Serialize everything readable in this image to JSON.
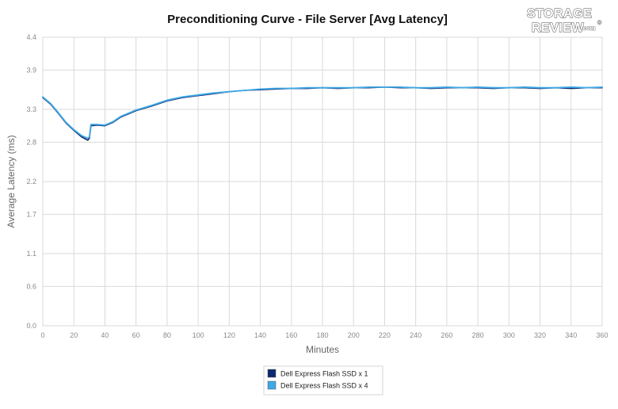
{
  "chart_data": {
    "type": "line",
    "title": "Preconditioning Curve - File Server [Avg Latency]",
    "xlabel": "Minutes",
    "ylabel": "Average Latency (ms)",
    "xlim": [
      0,
      360
    ],
    "ylim": [
      0.0,
      4.4
    ],
    "x_ticks": [
      0,
      20,
      40,
      60,
      80,
      100,
      120,
      140,
      160,
      180,
      200,
      220,
      240,
      260,
      280,
      300,
      320,
      340,
      360
    ],
    "y_ticks": [
      0.0,
      0.6,
      1.1,
      1.7,
      2.2,
      2.8,
      3.3,
      3.9,
      4.4
    ],
    "grid": true,
    "legend_position": "bottom-center",
    "series": [
      {
        "name": "Dell Express Flash SSD x 1",
        "color": "#0d2a6e",
        "x": [
          0,
          5,
          10,
          15,
          20,
          25,
          29,
          30,
          31,
          35,
          40,
          45,
          50,
          55,
          60,
          70,
          80,
          90,
          100,
          110,
          120,
          130,
          140,
          150,
          160,
          170,
          180,
          190,
          200,
          210,
          220,
          230,
          240,
          250,
          260,
          270,
          280,
          290,
          300,
          310,
          320,
          330,
          340,
          350,
          360
        ],
        "y": [
          3.48,
          3.38,
          3.24,
          3.09,
          2.98,
          2.88,
          2.83,
          2.86,
          3.05,
          3.06,
          3.05,
          3.1,
          3.18,
          3.23,
          3.28,
          3.35,
          3.43,
          3.48,
          3.51,
          3.54,
          3.57,
          3.59,
          3.6,
          3.61,
          3.62,
          3.62,
          3.63,
          3.62,
          3.63,
          3.63,
          3.64,
          3.63,
          3.63,
          3.62,
          3.63,
          3.63,
          3.63,
          3.62,
          3.63,
          3.63,
          3.62,
          3.63,
          3.62,
          3.63,
          3.63
        ]
      },
      {
        "name": "Dell Express Flash SSD x 4",
        "color": "#3fa9e6",
        "x": [
          0,
          5,
          10,
          15,
          20,
          25,
          29,
          30,
          31,
          35,
          40,
          45,
          50,
          55,
          60,
          70,
          80,
          90,
          100,
          110,
          120,
          130,
          140,
          150,
          160,
          170,
          180,
          190,
          200,
          210,
          220,
          230,
          240,
          250,
          260,
          270,
          280,
          290,
          300,
          310,
          320,
          330,
          340,
          350,
          360
        ],
        "y": [
          3.49,
          3.39,
          3.25,
          3.1,
          2.99,
          2.9,
          2.86,
          2.88,
          3.07,
          3.07,
          3.06,
          3.11,
          3.19,
          3.24,
          3.29,
          3.36,
          3.44,
          3.49,
          3.52,
          3.55,
          3.57,
          3.59,
          3.61,
          3.62,
          3.62,
          3.63,
          3.63,
          3.63,
          3.63,
          3.64,
          3.64,
          3.64,
          3.63,
          3.63,
          3.64,
          3.63,
          3.64,
          3.63,
          3.63,
          3.64,
          3.63,
          3.63,
          3.64,
          3.63,
          3.64
        ]
      }
    ]
  },
  "logo": {
    "line1": "STORAGE",
    "line2": "REVIEW",
    "suffix": ".com",
    "mark": "®"
  }
}
